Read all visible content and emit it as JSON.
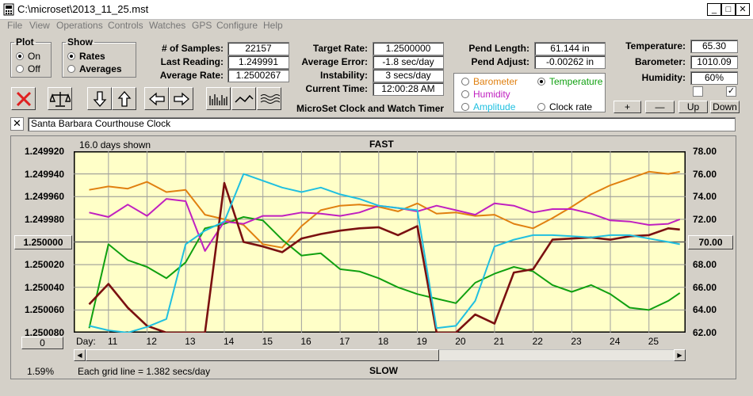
{
  "window": {
    "title": "C:\\microset\\2013_11_25.mst"
  },
  "menu": [
    "File",
    "View",
    "Operations",
    "Controls",
    "Watches",
    "GPS",
    "Configure",
    "Help"
  ],
  "plot_group": {
    "title": "Plot",
    "options": [
      "On",
      "Off"
    ],
    "selected": "On"
  },
  "show_group": {
    "title": "Show",
    "options": [
      "Rates",
      "Averages"
    ],
    "selected": "Rates"
  },
  "stats": {
    "samples_label": "# of Samples:",
    "samples": "22157",
    "last_label": "Last Reading:",
    "last": "1.249991",
    "avg_label": "Average Rate:",
    "avg": "1.2500267",
    "target_label": "Target Rate:",
    "target": "1.2500000",
    "avgerr_label": "Average Error:",
    "avgerr": "-1.8 sec/day",
    "instab_label": "Instability:",
    "instab": "3 secs/day",
    "time_label": "Current Time:",
    "time": "12:00:28 AM",
    "pendlen_label": "Pend Length:",
    "pendlen": "61.144 in",
    "pendadj_label": "Pend Adjust:",
    "pendadj": "-0.00262 in",
    "temp_label": "Temperature:",
    "temp": "65.30",
    "baro_label": "Barometer:",
    "baro": "1010.09",
    "hum_label": "Humidity:",
    "hum": "60%"
  },
  "app_title": "MicroSet Clock and Watch Timer",
  "overlay": {
    "options": [
      {
        "label": "Barometer",
        "color": "#e08010",
        "selected": false
      },
      {
        "label": "Temperature",
        "color": "#10a010",
        "selected": true
      },
      {
        "label": "Humidity",
        "color": "#c020c0",
        "selected": false
      },
      {
        "label": "Clock rate",
        "color": "#000000",
        "selected": false
      },
      {
        "label": "Amplitude",
        "color": "#20c0e0",
        "selected": false
      }
    ]
  },
  "scale_buttons": [
    "+",
    "—",
    "Up",
    "Down"
  ],
  "clock_name": "Santa Barbara Courthouse Clock",
  "chart": {
    "days_shown": "16.0 days shown",
    "top_label": "FAST",
    "bottom_label": "SLOW",
    "grid_info": "Each grid line = 1.382 secs/day",
    "percent": "1.59%",
    "day_label": "Day:",
    "left_button": "1.250000",
    "right_button": "70.00",
    "zero_button": "0"
  },
  "chart_data": {
    "type": "line",
    "x": [
      10.5,
      11,
      11.5,
      12,
      12.5,
      13,
      13.5,
      14,
      14.5,
      15,
      15.5,
      16,
      16.5,
      17,
      17.5,
      18,
      18.5,
      19,
      19.5,
      20,
      20.5,
      21,
      21.5,
      22,
      22.5,
      23,
      23.5,
      24,
      24.5,
      25,
      25.5,
      25.8
    ],
    "x_ticks": [
      "11",
      "12",
      "13",
      "14",
      "15",
      "16",
      "17",
      "18",
      "19",
      "20",
      "21",
      "22",
      "23",
      "24",
      "25"
    ],
    "y_left_ticks": [
      "1.249920",
      "1.249940",
      "1.249960",
      "1.249980",
      "1.250000",
      "1.250020",
      "1.250040",
      "1.250060",
      "1.250080"
    ],
    "y_right_ticks": [
      "78.00",
      "76.00",
      "74.00",
      "72.00",
      "70.00",
      "68.00",
      "66.00",
      "64.00",
      "62.00"
    ],
    "ylim_left": [
      1.25008,
      1.24992
    ],
    "ylim_right": [
      62,
      78
    ],
    "grid": true,
    "series": [
      {
        "name": "Barometer",
        "color": "#e08010",
        "values": [
          74.6,
          74.9,
          74.7,
          75.3,
          74.4,
          74.6,
          72.4,
          72.0,
          71.5,
          69.8,
          69.5,
          71.4,
          72.8,
          73.2,
          73.3,
          73.1,
          72.7,
          73.4,
          72.5,
          72.6,
          72.3,
          72.4,
          71.6,
          71.2,
          72.1,
          73.1,
          74.2,
          75.0,
          75.6,
          76.2,
          76.0,
          76.2
        ]
      },
      {
        "name": "Temperature",
        "color": "#10a010",
        "values": [
          62.4,
          69.8,
          68.4,
          67.8,
          66.8,
          68.2,
          71.2,
          71.6,
          72.2,
          71.9,
          70.2,
          68.8,
          69.0,
          67.6,
          67.4,
          66.8,
          66.0,
          65.4,
          65.0,
          64.6,
          66.4,
          67.2,
          67.8,
          67.4,
          66.2,
          65.6,
          66.2,
          65.4,
          64.2,
          64.0,
          64.8,
          65.5
        ]
      },
      {
        "name": "Humidity",
        "color": "#c020c0",
        "values": [
          72.6,
          72.2,
          73.3,
          72.3,
          73.8,
          73.6,
          69.2,
          71.8,
          71.6,
          72.3,
          72.3,
          72.6,
          72.5,
          72.3,
          72.6,
          73.2,
          73.0,
          72.7,
          73.2,
          72.8,
          72.4,
          73.4,
          73.2,
          72.6,
          72.9,
          72.9,
          72.5,
          71.9,
          71.8,
          71.5,
          71.6,
          72.0
        ]
      },
      {
        "name": "Clock rate",
        "color": "#7a1010",
        "values": [
          64.5,
          66.3,
          64.2,
          62.6,
          62.0,
          62.0,
          62.0,
          75.2,
          70.0,
          69.6,
          69.1,
          70.3,
          70.7,
          71.0,
          71.2,
          71.3,
          70.6,
          71.4,
          62.0,
          62.0,
          63.6,
          62.8,
          67.3,
          67.6,
          70.2,
          70.3,
          70.4,
          70.2,
          70.5,
          70.6,
          71.2,
          71.1
        ]
      },
      {
        "name": "Amplitude",
        "color": "#20c0e0",
        "values": [
          62.6,
          62.2,
          62.0,
          62.5,
          63.2,
          69.8,
          71.0,
          71.8,
          76.0,
          75.4,
          74.8,
          74.4,
          74.8,
          74.2,
          73.8,
          73.2,
          73.0,
          72.8,
          62.4,
          62.6,
          64.8,
          69.6,
          70.2,
          70.6,
          70.6,
          70.5,
          70.4,
          70.6,
          70.6,
          70.3,
          70.0,
          69.8
        ]
      }
    ]
  }
}
